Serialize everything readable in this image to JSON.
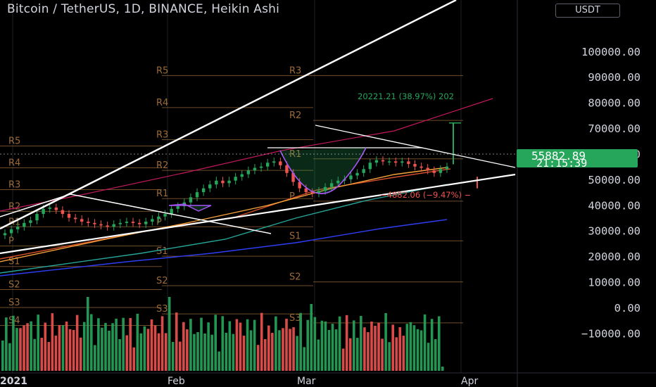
{
  "header": {
    "title": "Bitcoin / TetherUS, 1D, BINANCE, Heikin Ashi",
    "currency_button": "USDT"
  },
  "price_tag": {
    "price": "55882.89",
    "countdown": "21:15:39"
  },
  "colors": {
    "up": "#26a65b",
    "down": "#ef5350",
    "pivot": "#9c6b3a",
    "trend": "#ffffff"
  },
  "chart_data": {
    "type": "candlestick",
    "title": "Bitcoin / TetherUS, 1D, BINANCE, Heikin Ashi",
    "y_ticks": [
      100000,
      90000,
      80000,
      70000,
      60000,
      50000,
      40000,
      30000,
      20000,
      10000,
      0,
      -10000
    ],
    "y_tick_labels": [
      "100000.00",
      "90000.00",
      "80000.00",
      "70000.00",
      "60000.00",
      "50000.00",
      "40000.00",
      "30000.00",
      "20000.00",
      "10000.00",
      "0.00",
      "−10000.00"
    ],
    "ylim": [
      -14000,
      109000
    ],
    "x_ticks": [
      "2021",
      "Feb",
      "Mar",
      "Apr"
    ],
    "last_price": 55882.89,
    "pivot_levels": {
      "period1": [
        {
          "label": "R5",
          "value": 63000
        },
        {
          "label": "R4",
          "value": 54500
        },
        {
          "label": "R3",
          "value": 46000
        },
        {
          "label": "R2",
          "value": 37500
        },
        {
          "label": "R1",
          "value": 31500
        },
        {
          "label": "P",
          "value": 24000
        },
        {
          "label": "S1",
          "value": 16000
        },
        {
          "label": "S2",
          "value": 7000
        },
        {
          "label": "S3",
          "value": 0
        },
        {
          "label": "S4",
          "value": -7000
        }
      ],
      "period2": [
        {
          "label": "R5",
          "value": 90500
        },
        {
          "label": "R4",
          "value": 78000
        },
        {
          "label": "R3",
          "value": 65500
        },
        {
          "label": "R2",
          "value": 53500
        },
        {
          "label": "R1",
          "value": 42500
        },
        {
          "label": "P",
          "value": 31500
        },
        {
          "label": "S1",
          "value": 20000
        },
        {
          "label": "S2",
          "value": 8500
        },
        {
          "label": "S3",
          "value": -2500
        }
      ],
      "period3": [
        {
          "label": "R3",
          "value": 90500
        },
        {
          "label": "R2",
          "value": 73000
        },
        {
          "label": "R1",
          "value": 58000
        },
        {
          "label": "P",
          "value": 41500
        },
        {
          "label": "S1",
          "value": 26000
        },
        {
          "label": "S2",
          "value": 10000
        },
        {
          "label": "S3",
          "value": -6000
        }
      ]
    },
    "annotations": {
      "target": "20221.21 (38.97%) 202",
      "drawdown": "−4882.06 (−9.47%) −"
    },
    "closes": [
      29000,
      30500,
      31500,
      33000,
      34000,
      36500,
      38500,
      39000,
      38000,
      36500,
      35000,
      34500,
      33500,
      33000,
      32500,
      32000,
      31500,
      32500,
      33000,
      33500,
      33000,
      32500,
      33500,
      34500,
      35500,
      36500,
      38500,
      39500,
      41000,
      43000,
      45000,
      46500,
      48000,
      49500,
      48500,
      49500,
      51000,
      52000,
      53500,
      54500,
      55000,
      56500,
      57000,
      55500,
      52500,
      49000,
      46500,
      45000,
      44500,
      45500,
      47000,
      48500,
      49500,
      50000,
      51500,
      52500,
      54000,
      56500,
      57500,
      57000,
      57000,
      56500,
      57000,
      56000,
      55000,
      54500,
      53500,
      52500,
      54000,
      55000
    ]
  }
}
